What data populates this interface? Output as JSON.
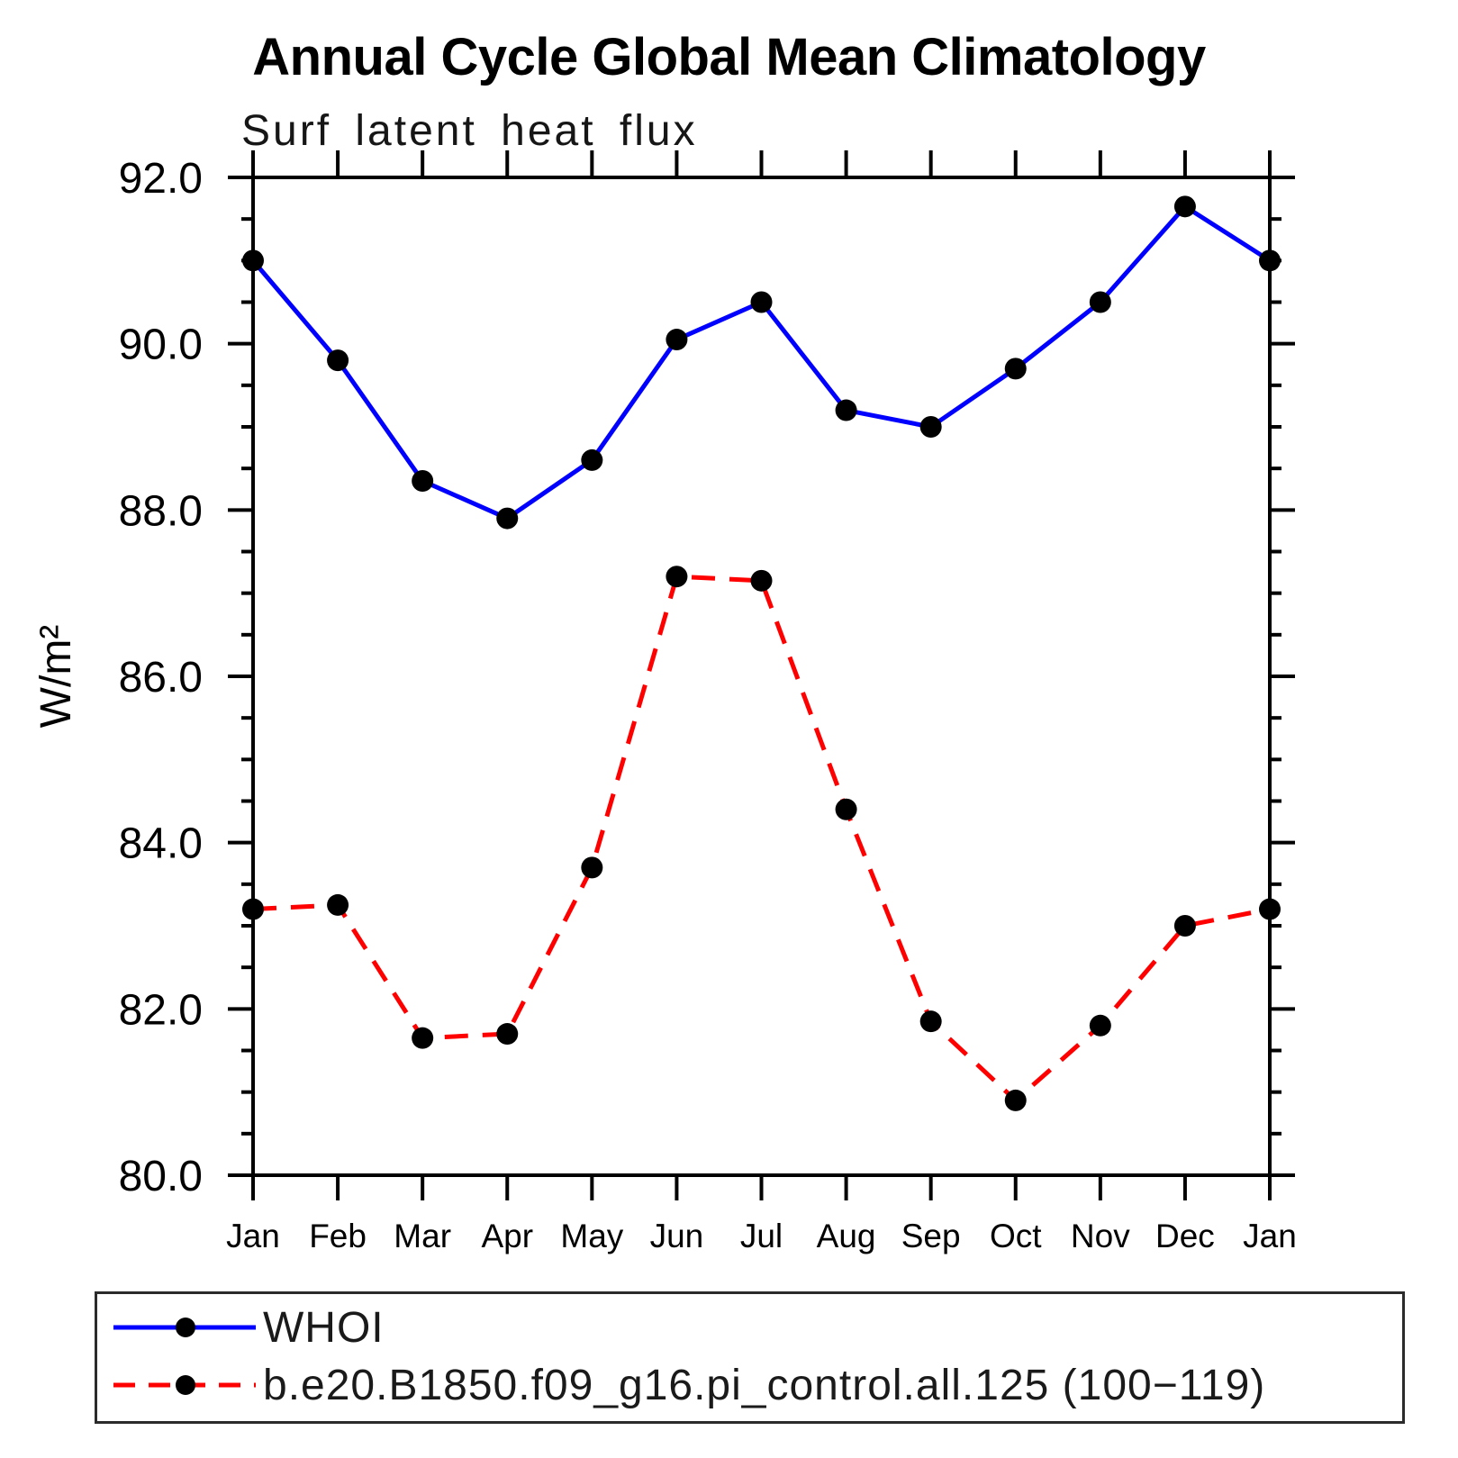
{
  "header": {
    "title": "Annual Cycle Global Mean Climatology",
    "subtitle": "Surf latent heat flux"
  },
  "chart_data": {
    "type": "line",
    "title": "Annual Cycle Global Mean Climatology",
    "subtitle": "Surf latent heat flux",
    "ylabel": "W/m²",
    "xlabel": "",
    "categories": [
      "Jan",
      "Feb",
      "Mar",
      "Apr",
      "May",
      "Jun",
      "Jul",
      "Aug",
      "Sep",
      "Oct",
      "Nov",
      "Dec",
      "Jan"
    ],
    "ylim": [
      80.0,
      92.0
    ],
    "y_major_step": 2.0,
    "y_minor_step": 0.5,
    "y_tick_labels": [
      "80.0",
      "82.0",
      "84.0",
      "86.0",
      "88.0",
      "90.0",
      "92.0"
    ],
    "grid": false,
    "legend_position": "bottom-box",
    "axis_color": "#000000",
    "series": [
      {
        "name": "WHOI",
        "color": "#0000ff",
        "style": "solid",
        "marker": "circle",
        "marker_color": "#000000",
        "values": [
          91.0,
          89.8,
          88.35,
          87.9,
          88.6,
          90.05,
          90.5,
          89.2,
          89.0,
          89.7,
          90.5,
          91.65,
          91.0
        ]
      },
      {
        "name": "b.e20.B1850.f09_g16.pi_control.all.125 (100−119)",
        "color": "#ff0000",
        "style": "dashed",
        "marker": "circle",
        "marker_color": "#000000",
        "values": [
          83.2,
          83.25,
          81.65,
          81.7,
          83.7,
          87.2,
          87.15,
          84.4,
          81.85,
          80.9,
          81.8,
          83.0,
          83.2
        ]
      }
    ]
  }
}
